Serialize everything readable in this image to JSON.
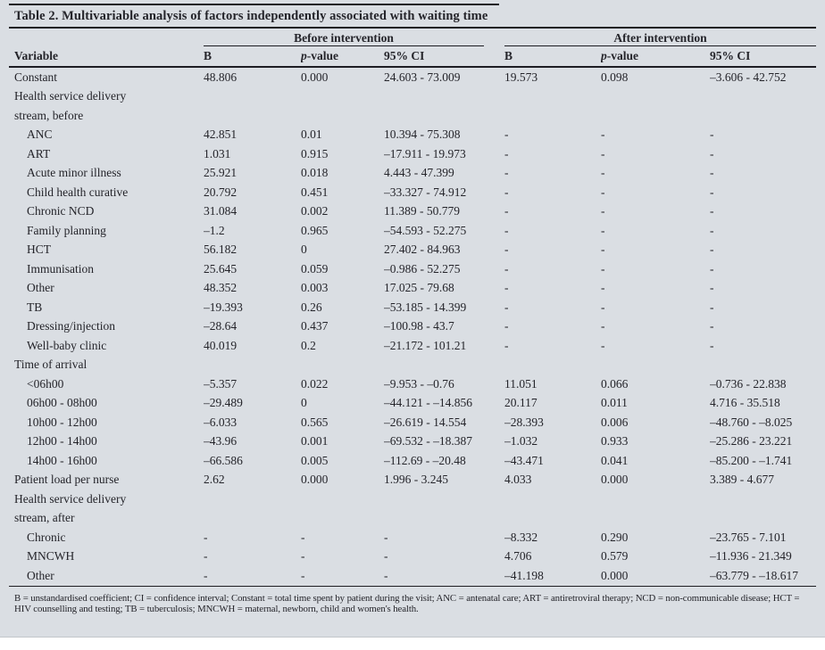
{
  "page": {
    "panel_background": "#dadee3",
    "text_color": "#24242a",
    "rule_color": "#1d1d23"
  },
  "table": {
    "title": "Table 2. Multivariable analysis of factors independently associated with waiting time",
    "group_headers": [
      "Before intervention",
      "After intervention"
    ],
    "columns": [
      "Variable",
      "B",
      "p-value",
      "95% CI",
      "B",
      "p-value",
      "95% CI"
    ],
    "rows": [
      {
        "label": "Constant",
        "indent": false,
        "cells": [
          "48.806",
          "0.000",
          "24.603 - 73.009",
          "19.573",
          "0.098",
          "–3.606 - 42.752"
        ]
      },
      {
        "label": "Health service delivery",
        "indent": false,
        "cells": [
          "",
          "",
          "",
          "",
          "",
          ""
        ]
      },
      {
        "label": "stream, before",
        "indent": false,
        "cells": [
          "",
          "",
          "",
          "",
          "",
          ""
        ]
      },
      {
        "label": "ANC",
        "indent": true,
        "cells": [
          "42.851",
          "0.01",
          "10.394 - 75.308",
          "-",
          "-",
          "-"
        ]
      },
      {
        "label": "ART",
        "indent": true,
        "cells": [
          "1.031",
          "0.915",
          "–17.911 - 19.973",
          "-",
          "-",
          "-"
        ]
      },
      {
        "label": "Acute minor illness",
        "indent": true,
        "cells": [
          "25.921",
          "0.018",
          "4.443 - 47.399",
          "-",
          "-",
          "-"
        ]
      },
      {
        "label": "Child health curative",
        "indent": true,
        "cells": [
          "20.792",
          "0.451",
          "–33.327 - 74.912",
          "-",
          "-",
          "-"
        ]
      },
      {
        "label": "Chronic NCD",
        "indent": true,
        "cells": [
          "31.084",
          "0.002",
          "11.389 - 50.779",
          "-",
          "-",
          "-"
        ]
      },
      {
        "label": "Family planning",
        "indent": true,
        "cells": [
          "–1.2",
          "0.965",
          "–54.593 - 52.275",
          "-",
          "-",
          "-"
        ]
      },
      {
        "label": "HCT",
        "indent": true,
        "cells": [
          "56.182",
          "0",
          "27.402 - 84.963",
          "-",
          "-",
          "-"
        ]
      },
      {
        "label": "Immunisation",
        "indent": true,
        "cells": [
          "25.645",
          "0.059",
          "–0.986 - 52.275",
          "-",
          "-",
          "-"
        ]
      },
      {
        "label": "Other",
        "indent": true,
        "cells": [
          "48.352",
          "0.003",
          "17.025 - 79.68",
          "-",
          "-",
          "-"
        ]
      },
      {
        "label": "TB",
        "indent": true,
        "cells": [
          "–19.393",
          "0.26",
          "–53.185 - 14.399",
          "-",
          "-",
          "-"
        ]
      },
      {
        "label": "Dressing/injection",
        "indent": true,
        "cells": [
          "–28.64",
          "0.437",
          "–100.98 - 43.7",
          "-",
          "-",
          "-"
        ]
      },
      {
        "label": "Well-baby clinic",
        "indent": true,
        "cells": [
          "40.019",
          "0.2",
          "–21.172 - 101.21",
          "-",
          "-",
          "-"
        ]
      },
      {
        "label": "Time of arrival",
        "indent": false,
        "cells": [
          "",
          "",
          "",
          "",
          "",
          ""
        ]
      },
      {
        "label": "<06h00",
        "indent": true,
        "cells": [
          "–5.357",
          "0.022",
          "–9.953 - –0.76",
          "11.051",
          "0.066",
          "–0.736 - 22.838"
        ]
      },
      {
        "label": "06h00 - 08h00",
        "indent": true,
        "cells": [
          "–29.489",
          "0",
          "–44.121 - –14.856",
          "20.117",
          "0.011",
          "4.716 - 35.518"
        ]
      },
      {
        "label": "10h00 - 12h00",
        "indent": true,
        "cells": [
          "–6.033",
          "0.565",
          "–26.619 - 14.554",
          "–28.393",
          "0.006",
          "–48.760 - –8.025"
        ]
      },
      {
        "label": "12h00 - 14h00",
        "indent": true,
        "cells": [
          "–43.96",
          "0.001",
          "–69.532 - –18.387",
          "–1.032",
          "0.933",
          "–25.286 - 23.221"
        ]
      },
      {
        "label": "14h00 - 16h00",
        "indent": true,
        "cells": [
          "–66.586",
          "0.005",
          "–112.69 - –20.48",
          "–43.471",
          "0.041",
          "–85.200 - –1.741"
        ]
      },
      {
        "label": "Patient load per nurse",
        "indent": false,
        "cells": [
          "2.62",
          "0.000",
          "1.996 - 3.245",
          "4.033",
          "0.000",
          "3.389 - 4.677"
        ]
      },
      {
        "label": "Health service delivery",
        "indent": false,
        "cells": [
          "",
          "",
          "",
          "",
          "",
          ""
        ]
      },
      {
        "label": "stream, after",
        "indent": false,
        "cells": [
          "",
          "",
          "",
          "",
          "",
          ""
        ]
      },
      {
        "label": "Chronic",
        "indent": true,
        "cells": [
          "-",
          "-",
          "-",
          "–8.332",
          "0.290",
          "–23.765 - 7.101"
        ]
      },
      {
        "label": "MNCWH",
        "indent": true,
        "cells": [
          "-",
          "-",
          "-",
          "4.706",
          "0.579",
          "–11.936 - 21.349"
        ]
      },
      {
        "label": "Other",
        "indent": true,
        "cells": [
          "-",
          "-",
          "-",
          "–41.198",
          "0.000",
          "–63.779 - –18.617"
        ]
      }
    ],
    "footnote": "B = unstandardised coefficient; CI = confidence interval; Constant = total time spent by patient during the visit; ANC = antenatal care; ART = antiretroviral therapy; NCD = non-communicable disease; HCT = HIV counselling and testing; TB = tuberculosis; MNCWH = maternal, newborn, child and women's health."
  }
}
